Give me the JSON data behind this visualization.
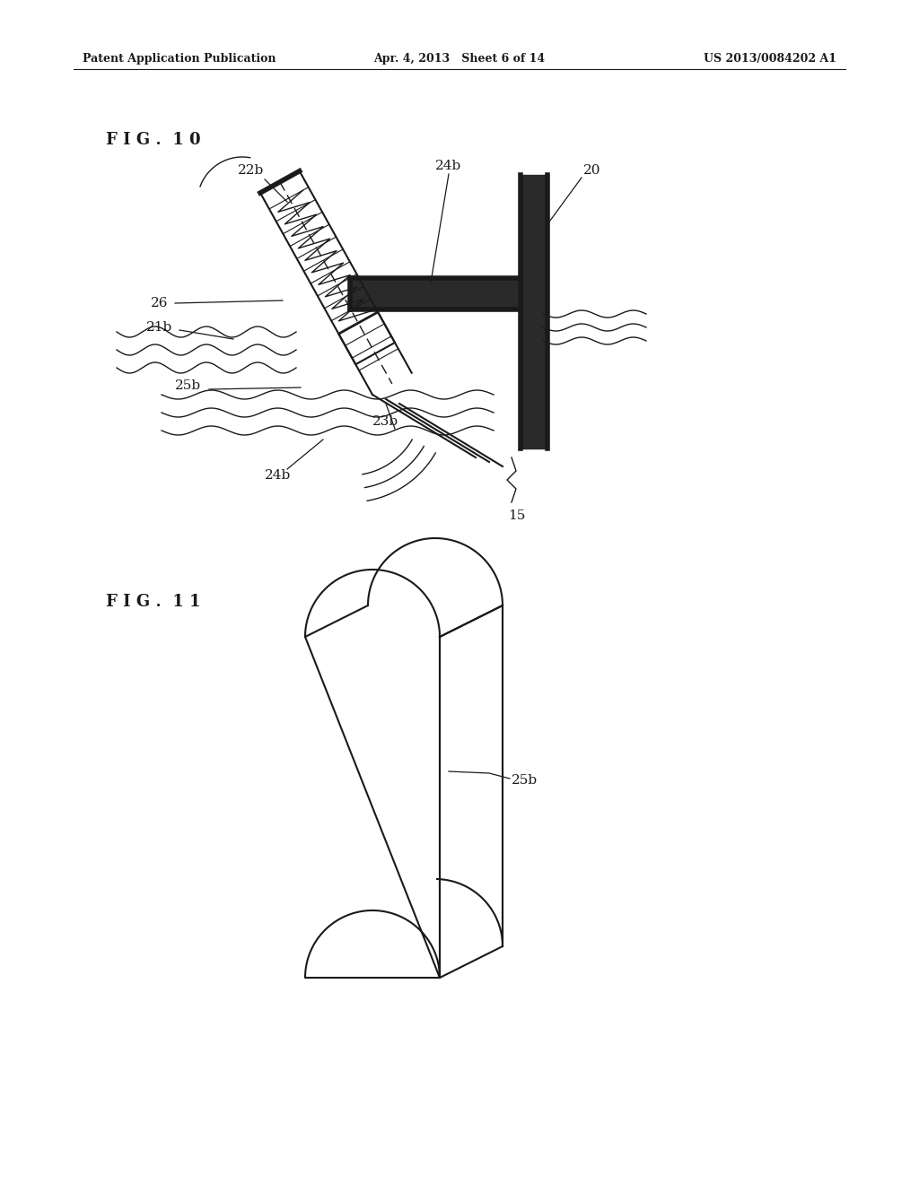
{
  "bg_color": "#ffffff",
  "line_color": "#1a1a1a",
  "header_left": "Patent Application Publication",
  "header_center": "Apr. 4, 2013   Sheet 6 of 14",
  "header_right": "US 2013/0084202 A1",
  "fig10_label": "F I G .  1 0",
  "fig11_label": "F I G .  1 1"
}
